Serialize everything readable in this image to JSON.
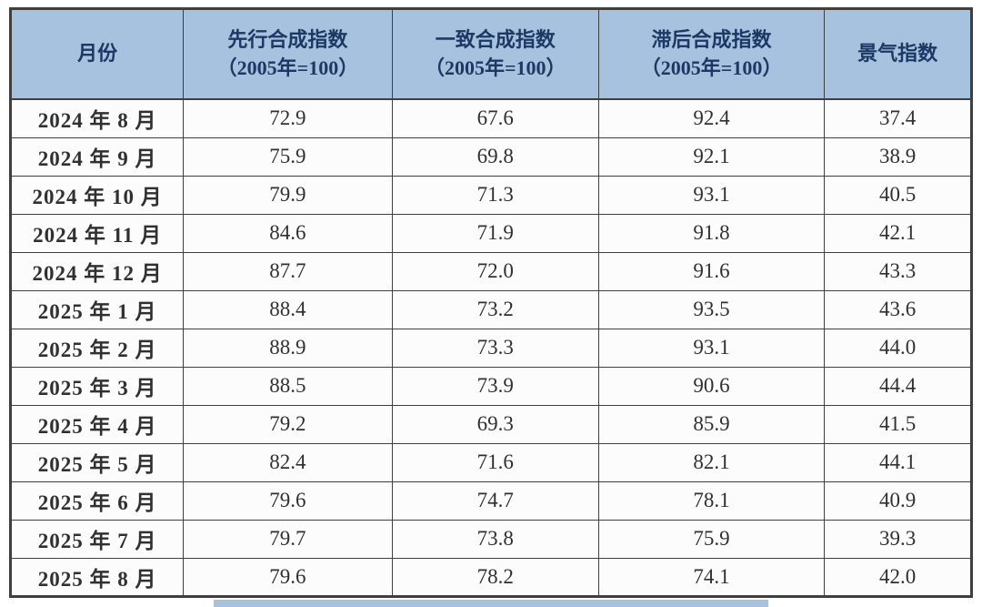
{
  "chart_data": {
    "type": "table",
    "columns": [
      {
        "line1": "月份",
        "line2": ""
      },
      {
        "line1": "先行合成指数",
        "line2": "（2005年=100）"
      },
      {
        "line1": "一致合成指数",
        "line2": "（2005年=100）"
      },
      {
        "line1": "滞后合成指数",
        "line2": "（2005年=100）"
      },
      {
        "line1": "景气指数",
        "line2": ""
      }
    ],
    "rows": [
      [
        "2024 年 8 月",
        "72.9",
        "67.6",
        "92.4",
        "37.4"
      ],
      [
        "2024 年 9 月",
        "75.9",
        "69.8",
        "92.1",
        "38.9"
      ],
      [
        "2024 年 10 月",
        "79.9",
        "71.3",
        "93.1",
        "40.5"
      ],
      [
        "2024 年 11 月",
        "84.6",
        "71.9",
        "91.8",
        "42.1"
      ],
      [
        "2024 年 12 月",
        "87.7",
        "72.0",
        "91.6",
        "43.3"
      ],
      [
        "2025 年 1 月",
        "88.4",
        "73.2",
        "93.5",
        "43.6"
      ],
      [
        "2025 年 2 月",
        "88.9",
        "73.3",
        "93.1",
        "44.0"
      ],
      [
        "2025 年 3 月",
        "88.5",
        "73.9",
        "90.6",
        "44.4"
      ],
      [
        "2025 年 4 月",
        "79.2",
        "69.3",
        "85.9",
        "41.5"
      ],
      [
        "2025 年 5 月",
        "82.4",
        "71.6",
        "82.1",
        "44.1"
      ],
      [
        "2025 年 6 月",
        "79.6",
        "74.7",
        "78.1",
        "40.9"
      ],
      [
        "2025 年 7 月",
        "79.7",
        "73.8",
        "75.9",
        "39.3"
      ],
      [
        "2025 年 8 月",
        "79.6",
        "78.2",
        "74.1",
        "42.0"
      ]
    ]
  },
  "colors": {
    "header_bg": "#a6c2de",
    "header_text": "#1c3864",
    "cell_text": "#303030",
    "border": "#3f3f3f",
    "row_bg": "#fcfcfc",
    "accent_bar": "#a6c2de"
  }
}
